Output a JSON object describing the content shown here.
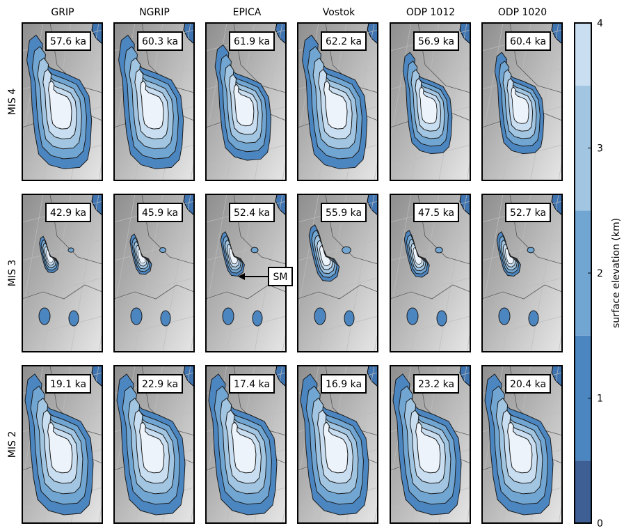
{
  "chart_data": {
    "type": "map-grid",
    "columns": [
      "GRIP",
      "NGRIP",
      "EPICA",
      "Vostok",
      "ODP 1012",
      "ODP 1020"
    ],
    "rows": [
      "MIS 4",
      "MIS 3",
      "MIS 2"
    ],
    "ages": [
      [
        "57.6 ka",
        "60.3 ka",
        "61.9 ka",
        "62.2 ka",
        "56.9 ka",
        "60.4 ka"
      ],
      [
        "42.9 ka",
        "45.9 ka",
        "52.4 ka",
        "55.9 ka",
        "47.5 ka",
        "52.7 ka"
      ],
      [
        "19.1 ka",
        "22.9 ka",
        "17.4 ka",
        "16.9 ka",
        "23.2 ka",
        "20.4 ka"
      ]
    ],
    "ice_extent": [
      [
        0.95,
        0.95,
        0.82,
        0.95,
        0.72,
        0.72
      ],
      [
        0.45,
        0.5,
        0.55,
        0.7,
        0.58,
        0.55
      ],
      [
        1.0,
        1.0,
        1.0,
        1.0,
        1.0,
        1.0
      ]
    ],
    "annotation": {
      "text": "SM",
      "row": 1,
      "col": 2
    },
    "colorbar": {
      "label": "surface elevation (km)",
      "range": [
        0,
        4
      ],
      "ticks": [
        0,
        1,
        2,
        3,
        4
      ],
      "levels": [
        0,
        0.5,
        1.5,
        2.5,
        3.5,
        4
      ],
      "colors": [
        "#3d5f93",
        "#4c86c0",
        "#72a6d2",
        "#a2c6e2",
        "#c9def0",
        "#ecf3fa"
      ]
    }
  }
}
